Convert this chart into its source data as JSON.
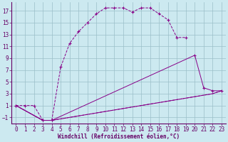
{
  "xlabel": "Windchill (Refroidissement éolien,°C)",
  "background_color": "#cce9f0",
  "line_color": "#880088",
  "grid_color": "#9bbfc8",
  "xlim": [
    -0.5,
    23.5
  ],
  "ylim": [
    -2.0,
    18.5
  ],
  "xticks": [
    0,
    1,
    2,
    3,
    4,
    5,
    6,
    7,
    8,
    9,
    10,
    11,
    12,
    13,
    14,
    15,
    16,
    17,
    18,
    19,
    20,
    21,
    22,
    23
  ],
  "yticks": [
    -1,
    1,
    3,
    5,
    7,
    9,
    11,
    13,
    15,
    17
  ],
  "series1_x": [
    0,
    1,
    2,
    3,
    4,
    5,
    6,
    7,
    8,
    9,
    10,
    11,
    12,
    13,
    14,
    15,
    16,
    17,
    18,
    19
  ],
  "series1_y": [
    1,
    1,
    1,
    -1.5,
    -1.5,
    7.5,
    11.5,
    13.5,
    15.0,
    16.5,
    17.5,
    17.5,
    17.5,
    16.8,
    17.5,
    17.5,
    16.5,
    15.5,
    12.5,
    12.5
  ],
  "series2_x": [
    0,
    3,
    4,
    20,
    21,
    22,
    23
  ],
  "series2_y": [
    1,
    -1.5,
    -1.5,
    9.5,
    4.0,
    3.5,
    3.5
  ],
  "series3_x": [
    0,
    3,
    4,
    22,
    23
  ],
  "series3_y": [
    1,
    -1.5,
    -1.5,
    3.0,
    3.5
  ],
  "series4_x": [
    0,
    3,
    4,
    22,
    23
  ],
  "series4_y": [
    1,
    -1.5,
    -1.5,
    3.0,
    3.5
  ],
  "tick_color": "#660066",
  "tick_fontsize": 5.5
}
